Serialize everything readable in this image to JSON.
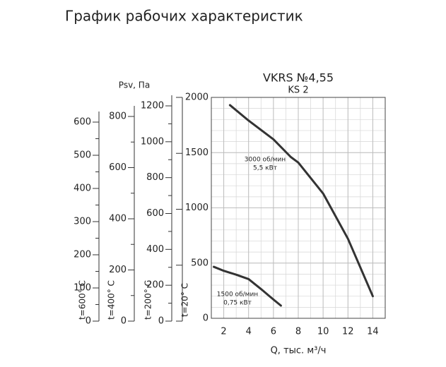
{
  "header": {
    "title": "График рабочих характеристик"
  },
  "chart_data": {
    "type": "line",
    "title": "VKRS №4,55",
    "subtitle": "KS 2",
    "y_axis_label": "Psv, Па",
    "x_axis_label": "Q, тыс. м³/ч",
    "xlim": [
      1,
      15
    ],
    "xticks": [
      2,
      4,
      6,
      8,
      10,
      12,
      14
    ],
    "ylim": [
      0,
      2000
    ],
    "yticks": [
      0,
      500,
      1000,
      1500,
      2000
    ],
    "grid": true,
    "series": [
      {
        "name": "3000 об/мин",
        "note": "5,5 кВт",
        "color": "#333333",
        "x": [
          2.5,
          4,
          6,
          7.4,
          8,
          10,
          12,
          14
        ],
        "values": [
          1930,
          1790,
          1620,
          1460,
          1410,
          1130,
          720,
          200
        ]
      },
      {
        "name": "1500 об/мин",
        "note": "0,75 кВт",
        "color": "#333333",
        "x": [
          1.2,
          2,
          3,
          4,
          5,
          6,
          6.6
        ],
        "values": [
          466,
          430,
          395,
          355,
          265,
          170,
          115
        ]
      }
    ],
    "extra_axes": [
      {
        "label": "t=600° C",
        "ylim": [
          0,
          600
        ],
        "yticks": [
          0,
          100,
          200,
          300,
          400,
          500,
          600
        ]
      },
      {
        "label": "t=400° C",
        "ylim": [
          0,
          800
        ],
        "yticks": [
          0,
          200,
          400,
          600,
          800
        ]
      },
      {
        "label": "t=200° C",
        "ylim": [
          0,
          1200
        ],
        "yticks": [
          0,
          200,
          400,
          600,
          800,
          1000,
          1200
        ]
      },
      {
        "label": "t=20° C"
      }
    ]
  }
}
